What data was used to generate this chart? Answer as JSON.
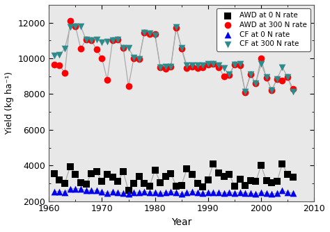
{
  "years": [
    1961,
    1962,
    1963,
    1964,
    1965,
    1966,
    1967,
    1968,
    1969,
    1970,
    1971,
    1972,
    1973,
    1974,
    1975,
    1976,
    1977,
    1978,
    1979,
    1980,
    1981,
    1982,
    1983,
    1984,
    1985,
    1986,
    1987,
    1988,
    1989,
    1990,
    1991,
    1992,
    1993,
    1994,
    1995,
    1996,
    1997,
    1998,
    1999,
    2000,
    2001,
    2002,
    2003,
    2004,
    2005,
    2006
  ],
  "AWD_0N": [
    3550,
    3200,
    3000,
    3950,
    3500,
    3050,
    2950,
    3550,
    3650,
    3100,
    3500,
    3350,
    3100,
    3650,
    2600,
    3000,
    3400,
    3000,
    2850,
    3750,
    3050,
    3400,
    3550,
    2850,
    2900,
    3800,
    3500,
    3000,
    2800,
    3200,
    4100,
    3600,
    3400,
    3500,
    2850,
    3250,
    2900,
    3150,
    3100,
    4000,
    3150,
    3050,
    3100,
    4100,
    3500,
    3350
  ],
  "AWD_300N": [
    9650,
    9600,
    9200,
    12100,
    11800,
    10550,
    11050,
    11000,
    10500,
    10000,
    8800,
    11000,
    11050,
    10600,
    8450,
    10000,
    9950,
    11450,
    11350,
    11350,
    9500,
    9400,
    9550,
    11700,
    10550,
    9450,
    9550,
    9450,
    9500,
    9650,
    9700,
    9500,
    9000,
    9050,
    9650,
    9600,
    8100,
    9100,
    8600,
    10000,
    8900,
    8200,
    8850,
    8750,
    8950,
    8300
  ],
  "CF_0N": [
    2550,
    2550,
    2500,
    2700,
    2700,
    2700,
    2600,
    2600,
    2600,
    2550,
    2450,
    2550,
    2500,
    2450,
    2400,
    2500,
    2500,
    2550,
    2500,
    2500,
    2450,
    2500,
    2550,
    2500,
    2400,
    2500,
    2550,
    2500,
    2450,
    2500,
    2500,
    2500,
    2450,
    2500,
    2450,
    2500,
    2450,
    2450,
    2400,
    2500,
    2450,
    2400,
    2450,
    2600,
    2500,
    2450
  ],
  "CF_300N": [
    10150,
    10200,
    10550,
    11750,
    11800,
    11800,
    11050,
    11000,
    11050,
    10900,
    10950,
    11000,
    11050,
    10600,
    10600,
    10050,
    9950,
    11450,
    11400,
    11300,
    9500,
    9550,
    9550,
    11750,
    10600,
    9600,
    9600,
    9600,
    9600,
    9700,
    9700,
    9600,
    9450,
    9100,
    9650,
    9700,
    8150,
    9100,
    8600,
    9700,
    8950,
    8200,
    8850,
    9500,
    8950,
    8150
  ],
  "ylabel": "Yield (kg ha⁻¹)",
  "xlabel": "Year",
  "legend": [
    "AWD at 0 N rate",
    "AWD at 300 N rate",
    "CF at 0 N rate",
    "CF at 300 N rate"
  ],
  "ylim": [
    2000,
    13000
  ],
  "xlim": [
    1960,
    2010
  ],
  "yticks": [
    2000,
    4000,
    6000,
    8000,
    10000,
    12000
  ],
  "xticks": [
    1960,
    1970,
    1980,
    1990,
    2000,
    2010
  ],
  "line_color": "#aaaaaa",
  "AWD_0N_color": "#000000",
  "AWD_300N_color": "#ff0000",
  "CF_0N_color": "#0000ee",
  "CF_300N_color": "#2e8b8b",
  "bg_color": "#e8e8e8",
  "fig_bg_color": "#ffffff"
}
